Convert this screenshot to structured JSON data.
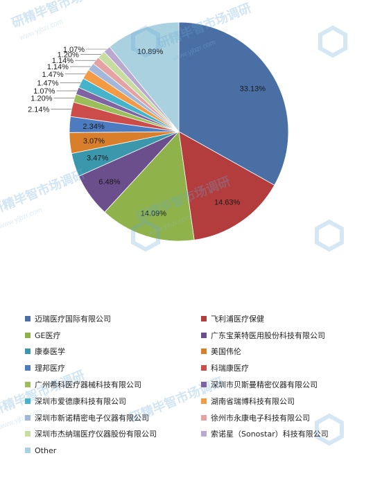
{
  "chart_data": {
    "type": "pie",
    "slices": [
      {
        "name": "迈瑞医疗国际有限公司",
        "value": 33.13,
        "label": "33.13%",
        "color": "#4a6fa5"
      },
      {
        "name": "飞利浦医疗保健",
        "value": 14.63,
        "label": "14.63%",
        "color": "#b33c3c"
      },
      {
        "name": "GE医疗",
        "value": 14.09,
        "label": "14.09%",
        "color": "#8fb24a"
      },
      {
        "name": "广东宝莱特医用股份科技有限公司",
        "value": 6.48,
        "label": "6.48%",
        "color": "#6b4e8c"
      },
      {
        "name": "康泰医学",
        "value": 3.47,
        "label": "3.47%",
        "color": "#3a97ac"
      },
      {
        "name": "美国伟伦",
        "value": 3.07,
        "label": "3.07%",
        "color": "#d97f2b"
      },
      {
        "name": "理邦医疗",
        "value": 2.34,
        "label": "2.34%",
        "color": "#4d7bbf"
      },
      {
        "name": "科瑞康医疗",
        "value": 2.14,
        "label": "2.14%",
        "color": "#cc4c4a"
      },
      {
        "name": "广州希科医疗器械科技有限公司",
        "value": 1.2,
        "label": "1.20%",
        "color": "#9bbd5a"
      },
      {
        "name": "深圳市贝斯曼精密仪器有限公司",
        "value": 1.07,
        "label": "1.07%",
        "color": "#7f63a3"
      },
      {
        "name": "深圳市爱德康科技有限公司",
        "value": 1.47,
        "label": "1.47%",
        "color": "#45b3c9"
      },
      {
        "name": "湖南省瑞博科技有限公司",
        "value": 1.47,
        "label": "1.47%",
        "color": "#f39a45"
      },
      {
        "name": "深圳市新诺精密电子仪器有限公司",
        "value": 1.14,
        "label": "1.14%",
        "color": "#a3b7d9"
      },
      {
        "name": "徐州市永康电子科技有限公司",
        "value": 1.14,
        "label": "1.14%",
        "color": "#e4a3a2"
      },
      {
        "name": "深圳市杰纳瑞医疗仪器股份有限公司",
        "value": 1.2,
        "label": "1.20%",
        "color": "#c7dca0"
      },
      {
        "name": "索诺星（Sonostar）科技有限公司",
        "value": 1.07,
        "label": "1.07%",
        "color": "#b9a8cf"
      },
      {
        "name": "Other",
        "value": 10.89,
        "label": "10.89%",
        "color": "#a9d1df"
      }
    ]
  },
  "legend": {
    "items": [
      "迈瑞医疗国际有限公司",
      "飞利浦医疗保健",
      "GE医疗",
      "广东宝莱特医用股份科技有限公司",
      "康泰医学",
      "美国伟伦",
      "理邦医疗",
      "科瑞康医疗",
      "广州希科医疗器械科技有限公司",
      "深圳市贝斯曼精密仪器有限公司",
      "深圳市爱德康科技有限公司",
      "湖南省瑞博科技有限公司",
      "深圳市新诺精密电子仪器有限公司",
      "徐州市永康电子科技有限公司",
      "深圳市杰纳瑞医疗仪器股份有限公司",
      "索诺星（Sonostar）科技有限公司",
      "Other"
    ]
  },
  "watermark": {
    "text": "研精毕智市场调研",
    "url": "www.yjbzr.com"
  }
}
